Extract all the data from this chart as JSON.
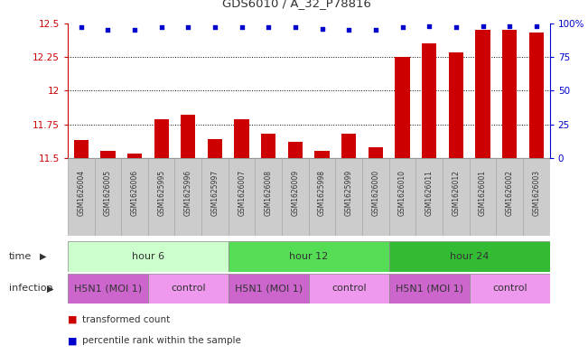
{
  "title": "GDS6010 / A_32_P78816",
  "samples": [
    "GSM1626004",
    "GSM1626005",
    "GSM1626006",
    "GSM1625995",
    "GSM1625996",
    "GSM1625997",
    "GSM1626007",
    "GSM1626008",
    "GSM1626009",
    "GSM1625998",
    "GSM1625999",
    "GSM1626000",
    "GSM1626010",
    "GSM1626011",
    "GSM1626012",
    "GSM1626001",
    "GSM1626002",
    "GSM1626003"
  ],
  "bar_values": [
    11.63,
    11.55,
    11.53,
    11.79,
    11.82,
    11.64,
    11.79,
    11.68,
    11.62,
    11.55,
    11.68,
    11.58,
    12.25,
    12.35,
    12.28,
    12.45,
    12.45,
    12.43
  ],
  "dot_values": [
    97,
    95,
    95,
    97,
    97,
    97,
    97,
    97,
    97,
    96,
    95,
    95,
    97,
    98,
    97,
    98,
    98,
    98
  ],
  "bar_color": "#cc0000",
  "dot_color": "#0000cc",
  "ylim_left": [
    11.5,
    12.5
  ],
  "ylim_right": [
    0,
    100
  ],
  "yticks_left": [
    11.5,
    11.75,
    12.0,
    12.25,
    12.5
  ],
  "ytick_labels_left": [
    "11.5",
    "11.75",
    "12",
    "12.25",
    "12.5"
  ],
  "yticks_right": [
    0,
    25,
    50,
    75,
    100
  ],
  "ytick_labels_right": [
    "0",
    "25",
    "50",
    "75",
    "100%"
  ],
  "time_groups": [
    {
      "label": "hour 6",
      "start": 0,
      "end": 6,
      "color": "#ccffcc"
    },
    {
      "label": "hour 12",
      "start": 6,
      "end": 12,
      "color": "#55dd55"
    },
    {
      "label": "hour 24",
      "start": 12,
      "end": 18,
      "color": "#33bb33"
    }
  ],
  "infection_groups": [
    {
      "label": "H5N1 (MOI 1)",
      "start": 0,
      "end": 3,
      "color": "#cc66cc"
    },
    {
      "label": "control",
      "start": 3,
      "end": 6,
      "color": "#ee99ee"
    },
    {
      "label": "H5N1 (MOI 1)",
      "start": 6,
      "end": 9,
      "color": "#cc66cc"
    },
    {
      "label": "control",
      "start": 9,
      "end": 12,
      "color": "#ee99ee"
    },
    {
      "label": "H5N1 (MOI 1)",
      "start": 12,
      "end": 15,
      "color": "#cc66cc"
    },
    {
      "label": "control",
      "start": 15,
      "end": 18,
      "color": "#ee99ee"
    }
  ],
  "time_label": "time",
  "infection_label": "infection",
  "legend_bar_label": "transformed count",
  "legend_dot_label": "percentile rank within the sample",
  "bar_width": 0.55,
  "bg_color": "#ffffff",
  "axis_color_left": "#cc0000",
  "axis_color_right": "#0000cc",
  "sample_cell_color": "#cccccc",
  "n": 18
}
